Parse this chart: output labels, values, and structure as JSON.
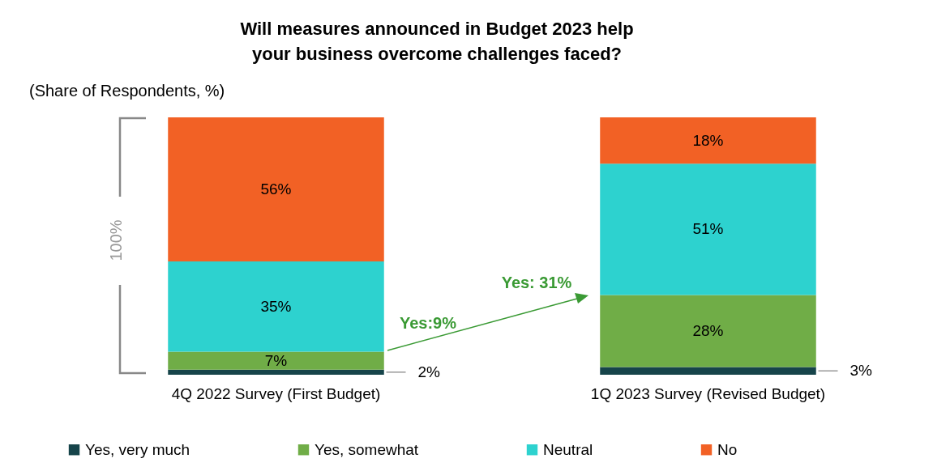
{
  "chart_data": {
    "type": "bar",
    "stacked": true,
    "title": "Will measures announced in Budget 2023 help your business overcome challenges faced?",
    "categories": [
      "4Q 2022 Survey (First Budget)",
      "1Q 2023 Survey (Revised Budget)"
    ],
    "series": [
      {
        "name": "Yes, very much",
        "color": "#16444a",
        "values": [
          2,
          3
        ],
        "value_labels": [
          "2%",
          "3%"
        ]
      },
      {
        "name": "Yes, somewhat",
        "color": "#70ad47",
        "values": [
          7,
          28
        ],
        "value_labels": [
          "7%",
          "28%"
        ]
      },
      {
        "name": "Neutral",
        "color": "#2dd2cf",
        "values": [
          35,
          51
        ],
        "value_labels": [
          "35%",
          "51%"
        ]
      },
      {
        "name": "No",
        "color": "#f26125",
        "values": [
          56,
          18
        ],
        "value_labels": [
          "56%",
          "18%"
        ]
      }
    ],
    "legend": "bottom",
    "annotations": [
      "(Share of Respondents, %)",
      "100%",
      "Yes:9%",
      "Yes: 31%"
    ]
  }
}
